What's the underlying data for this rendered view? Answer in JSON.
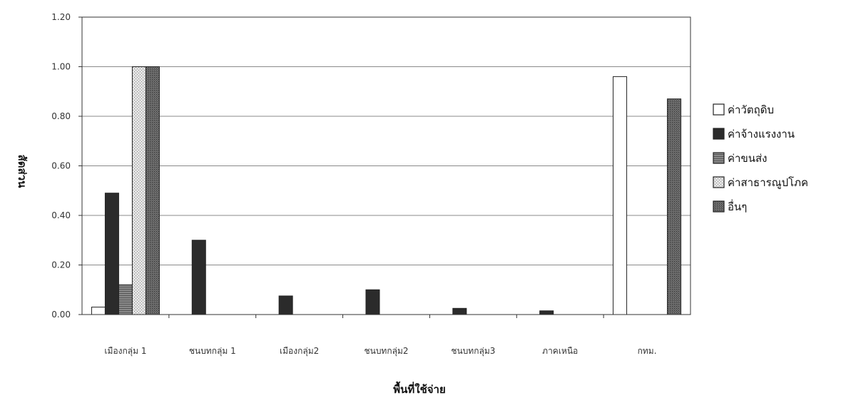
{
  "chart_data": {
    "type": "bar",
    "xlabel": "พื้นที่ใช้จ่าย",
    "ylabel": "สัดส่วน",
    "ylim": [
      0,
      1.2
    ],
    "yticks": [
      "0.00",
      "0.20",
      "0.40",
      "0.60",
      "0.80",
      "1.00",
      "1.20"
    ],
    "categories": [
      "เมืองกลุ่ม 1",
      "ชนบทกลุ่ม 1",
      "เมืองกลุ่ม2",
      "ชนบทกลุ่ม2",
      "ชนบทกลุ่ม3",
      "ภาคเหนือ",
      "กทม."
    ],
    "series": [
      {
        "name": "ค่าวัตถุดิบ",
        "values": [
          0.03,
          0,
          0,
          0,
          0,
          0,
          0.96
        ]
      },
      {
        "name": "ค่าจ้างแรงงาน",
        "values": [
          0.49,
          0.3,
          0.075,
          0.1,
          0.025,
          0.015,
          0
        ]
      },
      {
        "name": "ค่าขนส่ง",
        "values": [
          0.12,
          0,
          0,
          0,
          0,
          0,
          0
        ]
      },
      {
        "name": "ค่าสาธารณูปโภค",
        "values": [
          1.0,
          0,
          0,
          0,
          0,
          0,
          0
        ]
      },
      {
        "name": "อื่นๆ",
        "values": [
          1.0,
          0,
          0,
          0,
          0,
          0,
          0.87
        ]
      }
    ],
    "grid": true,
    "legend_position": "right"
  },
  "series_styles": [
    {
      "fill": "#ffffff",
      "pattern": "none"
    },
    {
      "fill": "#2b2b2b",
      "pattern": "none"
    },
    {
      "fill": "#7d7d7d",
      "pattern": "hlines"
    },
    {
      "fill": "#d2d2d2",
      "pattern": "dots"
    },
    {
      "fill": "#5a5a5a",
      "pattern": "dense"
    }
  ]
}
